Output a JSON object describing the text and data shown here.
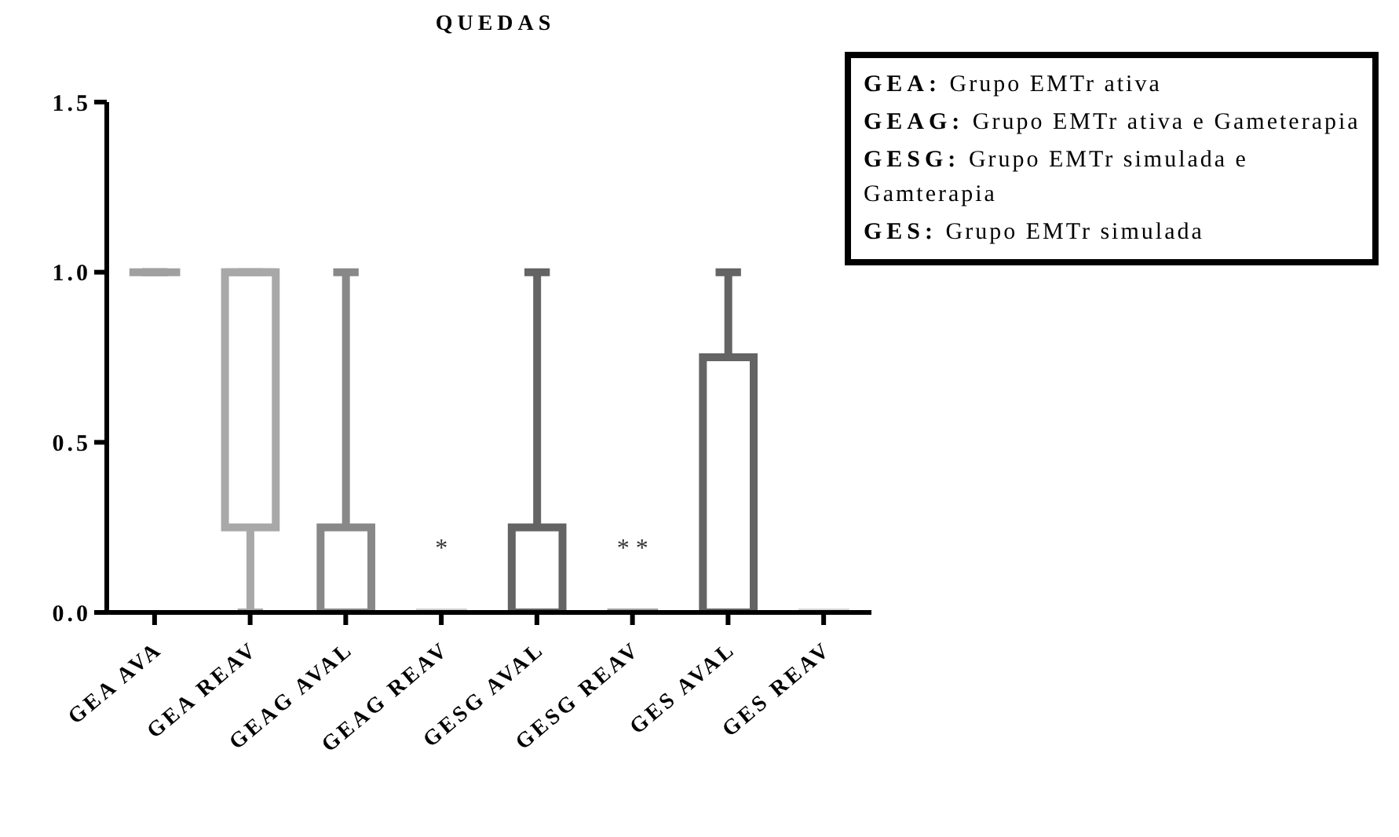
{
  "chart_data": {
    "type": "box",
    "title": "QUEDAS",
    "categories": [
      "GEA AVA",
      "GEA REAV",
      "GEAG AVAL",
      "GEAG REAV",
      "GESG AVAL",
      "GESG REAV",
      "GES AVAL",
      "GES REAV"
    ],
    "colors": [
      "#a0a0a0",
      "#a8a8a8",
      "#888888",
      "#d0d0d0",
      "#646464",
      "#a0a0a0",
      "#646464",
      "#d8d8d8"
    ],
    "boxes": [
      {
        "low": 1,
        "q1": 1,
        "median": 1,
        "q3": 1,
        "high": 1
      },
      {
        "low": 0,
        "q1": 0.25,
        "median": 1,
        "q3": 1,
        "high": 1
      },
      {
        "low": 0,
        "q1": 0,
        "median": 0,
        "q3": 0.25,
        "high": 1
      },
      {
        "low": 0,
        "q1": 0,
        "median": 0,
        "q3": 0,
        "high": 0
      },
      {
        "low": 0,
        "q1": 0,
        "median": 0,
        "q3": 0.25,
        "high": 1
      },
      {
        "low": 0,
        "q1": 0,
        "median": 0,
        "q3": 0,
        "high": 0
      },
      {
        "low": 0,
        "q1": 0,
        "median": 0,
        "q3": 0.75,
        "high": 1
      },
      {
        "low": 0,
        "q1": 0,
        "median": 0,
        "q3": 0,
        "high": 0
      }
    ],
    "ylim": [
      0,
      1.5
    ],
    "yticks": [
      {
        "value": 0,
        "label": "0.0"
      },
      0.5,
      {
        "value": 1,
        "label": "1.0"
      },
      1.5
    ],
    "grid": false,
    "annotations": [
      "*",
      "* *",
      "GEA: Grupo EMTr ativa",
      "GEAG: Grupo EMTr ativa e Gameterapia",
      "GESG: Grupo EMTr simulada e Gamterapia",
      "GES: Grupo EMTr simulada"
    ]
  }
}
